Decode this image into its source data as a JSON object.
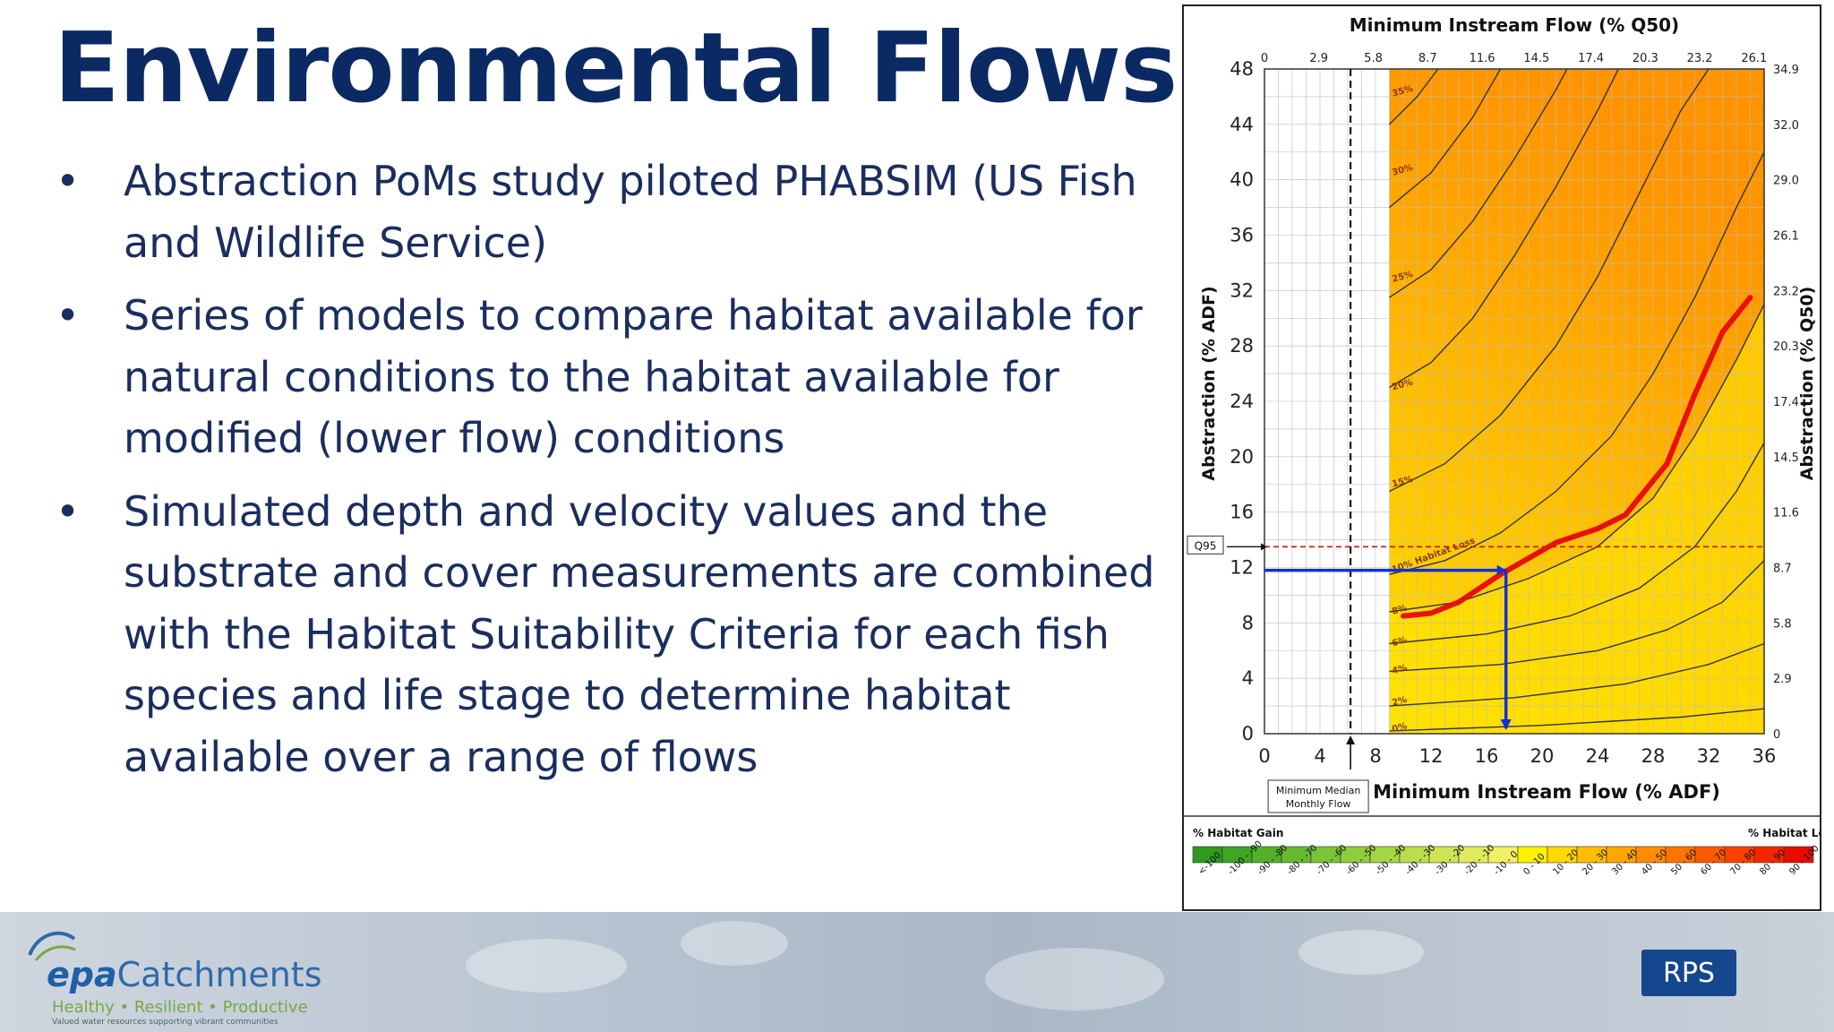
{
  "title": "Environmental Flows",
  "bullets": [
    "Abstraction PoMs study piloted PHABSIM (US Fish and Wildlife Service)",
    "Series of models to compare habitat available for natural conditions to the habitat available for modified (lower flow) conditions",
    "Simulated depth and velocity values and the substrate and cover measurements are combined with the Habitat Suitability Criteria for each fish species and life stage to determine habitat available over a range of flows"
  ],
  "bullet_glyph": "•",
  "chart_data": {
    "type": "heatmap",
    "title": "Minimum Instream Flow (% Q50)",
    "xlabel": "Minimum Instream Flow (% ADF)",
    "ylabel_left": "Abstraction (% ADF)",
    "ylabel_right": "Abstraction (% Q50)",
    "x_range": [
      0,
      36
    ],
    "y_range": [
      0,
      48
    ],
    "x_ticks_bottom": [
      "0",
      "4",
      "8",
      "12",
      "16",
      "20",
      "24",
      "28",
      "32",
      "36"
    ],
    "x_ticks_top": [
      "0",
      "2.9",
      "5.8",
      "8.7",
      "11.6",
      "14.5",
      "17.4",
      "20.3",
      "23.2",
      "26.1"
    ],
    "y_ticks_left": [
      "0",
      "4",
      "8",
      "12",
      "16",
      "20",
      "24",
      "28",
      "32",
      "36",
      "40",
      "44",
      "48"
    ],
    "y_ticks_right": [
      "0",
      "2.9",
      "5.8",
      "8.7",
      "11.6",
      "14.5",
      "17.4",
      "20.3",
      "23.2",
      "26.1",
      "29.0",
      "32.0",
      "34.9"
    ],
    "contour_labels": [
      "35%",
      "30%",
      "25%",
      "20%",
      "15%",
      "10% Habitat Loss",
      "8%",
      "6%",
      "4%",
      "2%",
      "0%"
    ],
    "contours": [
      {
        "label": "0%",
        "points": [
          [
            9,
            0.2
          ],
          [
            20,
            0.6
          ],
          [
            30,
            1.2
          ],
          [
            36,
            1.8
          ]
        ]
      },
      {
        "label": "2%",
        "points": [
          [
            9,
            2
          ],
          [
            18,
            2.6
          ],
          [
            26,
            3.6
          ],
          [
            32,
            5
          ],
          [
            36,
            6.5
          ]
        ]
      },
      {
        "label": "4%",
        "points": [
          [
            9,
            4.5
          ],
          [
            17,
            5
          ],
          [
            24,
            6
          ],
          [
            29,
            7.5
          ],
          [
            33,
            9.5
          ],
          [
            36,
            12.5
          ]
        ]
      },
      {
        "label": "6%",
        "points": [
          [
            9,
            6.5
          ],
          [
            16,
            7.2
          ],
          [
            22,
            8.5
          ],
          [
            27,
            10.5
          ],
          [
            31,
            13.5
          ],
          [
            34,
            17.5
          ],
          [
            36,
            21
          ]
        ]
      },
      {
        "label": "8%",
        "points": [
          [
            9,
            8.8
          ],
          [
            14,
            9.5
          ],
          [
            19,
            11.2
          ],
          [
            24,
            13.5
          ],
          [
            28,
            17
          ],
          [
            31,
            21.5
          ],
          [
            34,
            27
          ],
          [
            36,
            31
          ]
        ]
      },
      {
        "label": "10% Habitat Loss",
        "points": [
          [
            9,
            11.5
          ],
          [
            13,
            12.5
          ],
          [
            17,
            14.5
          ],
          [
            21,
            17.5
          ],
          [
            25,
            21.5
          ],
          [
            28,
            26
          ],
          [
            31,
            31.5
          ],
          [
            34,
            38
          ],
          [
            36,
            42
          ]
        ]
      },
      {
        "label": "15%",
        "points": [
          [
            9,
            17.5
          ],
          [
            13,
            19.5
          ],
          [
            17,
            23
          ],
          [
            21,
            28
          ],
          [
            24,
            33
          ],
          [
            27,
            39
          ],
          [
            30,
            45
          ],
          [
            32,
            48
          ]
        ]
      },
      {
        "label": "20%",
        "points": [
          [
            9,
            25
          ],
          [
            12,
            26.8
          ],
          [
            15,
            30
          ],
          [
            18,
            34.5
          ],
          [
            21,
            39.5
          ],
          [
            24,
            45
          ],
          [
            25.5,
            48
          ]
        ]
      },
      {
        "label": "25%",
        "points": [
          [
            9,
            31.5
          ],
          [
            12,
            33.5
          ],
          [
            15,
            37
          ],
          [
            18,
            41.5
          ],
          [
            21,
            46.5
          ],
          [
            21.8,
            48
          ]
        ]
      },
      {
        "label": "30%",
        "points": [
          [
            9,
            38
          ],
          [
            12,
            40.5
          ],
          [
            15,
            44.5
          ],
          [
            17,
            48
          ]
        ]
      },
      {
        "label": "35%",
        "points": [
          [
            9,
            44
          ],
          [
            11,
            46
          ],
          [
            12.5,
            48
          ]
        ]
      }
    ],
    "threshold_line": {
      "points": [
        [
          10,
          8.5
        ],
        [
          12,
          8.7
        ],
        [
          14,
          9.5
        ],
        [
          17,
          11.5
        ],
        [
          21,
          13.8
        ],
        [
          24,
          14.8
        ],
        [
          26,
          15.8
        ],
        [
          29,
          19.5
        ],
        [
          31,
          24.5
        ],
        [
          33,
          29
        ],
        [
          35,
          31.5
        ]
      ]
    },
    "q95_level": 13.5,
    "q95_label": "Q95",
    "median_flow_x": 6.2,
    "median_flow_label": "Minimum Median Monthly Flow",
    "example_path": {
      "abstraction": 11.8,
      "flow": 17.4
    },
    "heatmap_start_x": 9,
    "legend": {
      "left_label": "% Habitat Gain",
      "right_label": "% Habitat Loss",
      "bins": [
        "<-100",
        "-100 - -90",
        "-90 - -80",
        "-80 - -70",
        "-70 - -60",
        "-60 - -50",
        "-50 - -40",
        "-40 - -30",
        "-30 - -20",
        "-20 - -10",
        "-10 - 0",
        "0 - 10",
        "10 - 20",
        "20 - 30",
        "30 - 40",
        "40 - 50",
        "50 - 60",
        "60 - 70",
        "70 - 80",
        "80 - 90",
        "90 - 100"
      ],
      "colors": [
        "#2e9a1e",
        "#3fa524",
        "#52b02a",
        "#66ba30",
        "#7ac437",
        "#8fcd3e",
        "#a4d545",
        "#b9dd4d",
        "#cde455",
        "#e0eb5e",
        "#f1f166",
        "#fff200",
        "#ffd800",
        "#ffbf00",
        "#ffa600",
        "#ff8c00",
        "#ff7300",
        "#ff5900",
        "#ff4000",
        "#f42600",
        "#e60d00"
      ]
    }
  },
  "footer": {
    "epa_mark": "epa",
    "epa_word": "Catchments",
    "epa_tagline": "Healthy • Resilient • Productive",
    "epa_subline": "Valued water resources supporting vibrant communities",
    "rps_logo": "RPS"
  }
}
